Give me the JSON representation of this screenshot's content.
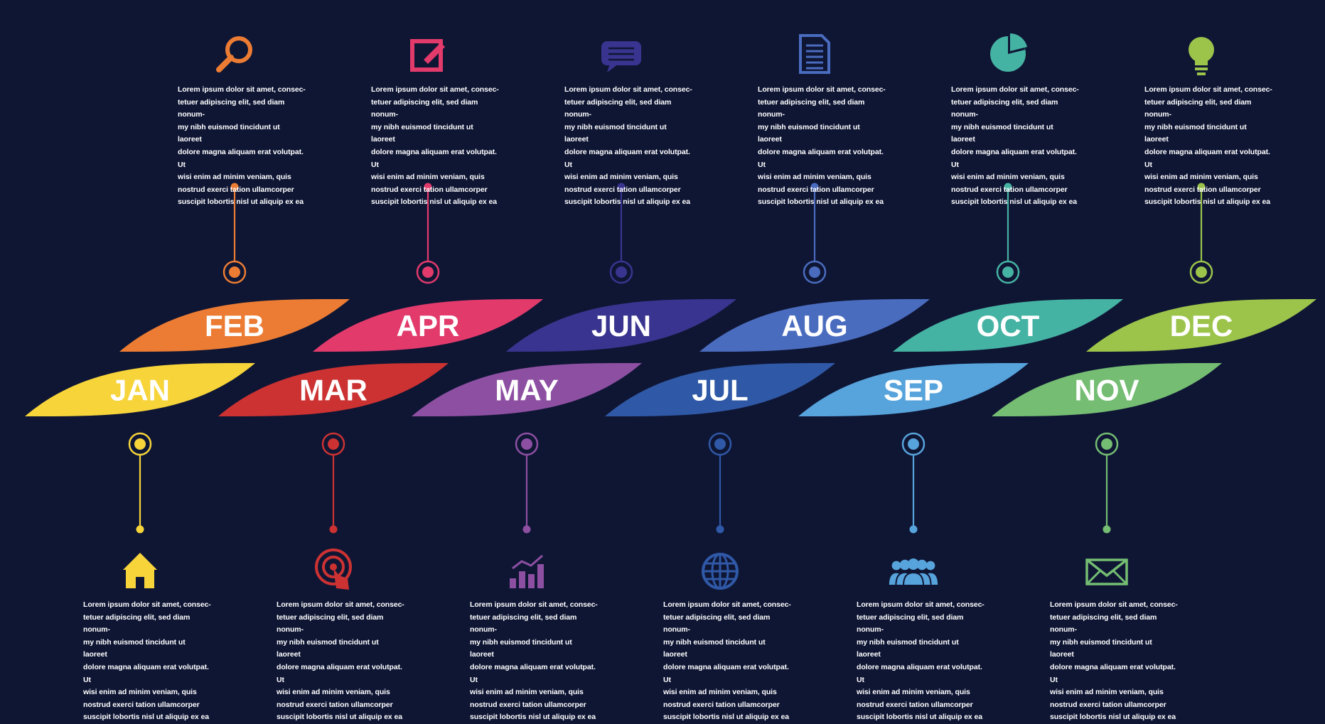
{
  "description_text": "Lorem ipsum dolor sit amet, consec-tetuer adipiscing elit, sed diam nonum-my nibh euismod tincidunt ut laoreet dolore magna aliquam erat volutpat. Ut wisi enim ad minim veniam, quis nostrud exerci tation ullamcorper suscipit lobortis nisl ut aliquip ex ea",
  "months": [
    {
      "label": "JAN",
      "color": "#f6d43a",
      "icon": "home-icon"
    },
    {
      "label": "FEB",
      "color": "#ec7c33",
      "icon": "search-icon"
    },
    {
      "label": "MAR",
      "color": "#cc3232",
      "icon": "touch-target-icon"
    },
    {
      "label": "APR",
      "color": "#e33a6c",
      "icon": "edit-icon"
    },
    {
      "label": "MAY",
      "color": "#8d4fa2",
      "icon": "bar-chart-icon"
    },
    {
      "label": "JUN",
      "color": "#39348f",
      "icon": "chat-icon"
    },
    {
      "label": "JUL",
      "color": "#2f58a6",
      "icon": "globe-icon"
    },
    {
      "label": "AUG",
      "color": "#4a6cbf",
      "icon": "document-icon"
    },
    {
      "label": "SEP",
      "color": "#57a3dc",
      "icon": "team-icon"
    },
    {
      "label": "OCT",
      "color": "#45b3a3",
      "icon": "pie-chart-icon"
    },
    {
      "label": "NOV",
      "color": "#74bd72",
      "icon": "mail-icon"
    },
    {
      "label": "DEC",
      "color": "#9cc44a",
      "icon": "lightbulb-icon"
    }
  ]
}
